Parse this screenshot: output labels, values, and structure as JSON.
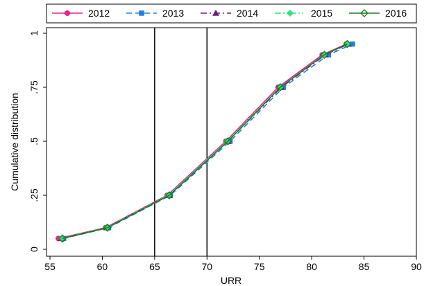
{
  "chart_data": {
    "type": "line",
    "title": "",
    "xlabel": "URR",
    "ylabel": "Cumulative distribution",
    "xlim": [
      55,
      90
    ],
    "ylim": [
      0,
      1
    ],
    "x_ticks": [
      55,
      60,
      65,
      70,
      75,
      80,
      85,
      90
    ],
    "x_tick_labels": [
      "55",
      "60",
      "65",
      "70",
      "75",
      "80",
      "85",
      "90"
    ],
    "y_ticks": [
      0,
      0.25,
      0.5,
      0.75,
      1
    ],
    "y_tick_labels": [
      "0",
      ".25",
      ".5",
      ".75",
      "1"
    ],
    "grid": false,
    "legend_position": "top",
    "reference_lines_x": [
      65,
      70
    ],
    "series": [
      {
        "name": "2012",
        "color": "#e8218c",
        "dash": "solid",
        "marker": "circle",
        "x": [
          55.8,
          60.3,
          66.2,
          71.8,
          76.8,
          81.0,
          83.3
        ],
        "y": [
          0.05,
          0.1,
          0.25,
          0.5,
          0.75,
          0.9,
          0.95
        ]
      },
      {
        "name": "2013",
        "color": "#1e7fe0",
        "dash": "longdash",
        "marker": "square",
        "x": [
          56.3,
          60.6,
          66.5,
          72.2,
          77.3,
          81.6,
          83.9
        ],
        "y": [
          0.05,
          0.1,
          0.25,
          0.5,
          0.75,
          0.9,
          0.95
        ]
      },
      {
        "name": "2014",
        "color": "#6a1b7a",
        "dash": "dashdot",
        "marker": "triangle",
        "x": [
          56.1,
          60.4,
          66.4,
          72.0,
          77.1,
          81.3,
          83.5
        ],
        "y": [
          0.05,
          0.1,
          0.25,
          0.5,
          0.75,
          0.9,
          0.95
        ]
      },
      {
        "name": "2015",
        "color": "#33e07a",
        "dash": "dashdotdot",
        "marker": "diamond",
        "x": [
          56.1,
          60.4,
          66.3,
          71.9,
          77.0,
          81.2,
          83.4
        ],
        "y": [
          0.05,
          0.1,
          0.25,
          0.5,
          0.75,
          0.9,
          0.95
        ]
      },
      {
        "name": "2016",
        "color": "#1c7a1c",
        "dash": "solid",
        "marker": "hollow-diamond",
        "x": [
          56.2,
          60.5,
          66.4,
          72.0,
          77.0,
          81.2,
          83.4
        ],
        "y": [
          0.05,
          0.1,
          0.25,
          0.5,
          0.75,
          0.9,
          0.95
        ]
      }
    ]
  }
}
